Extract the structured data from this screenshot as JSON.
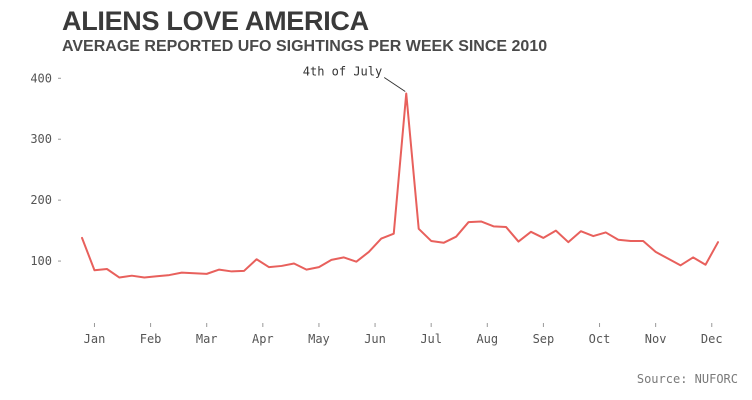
{
  "chart_data": {
    "type": "line",
    "title": "ALIENS LOVE AMERICA",
    "subtitle": "AVERAGE REPORTED UFO SIGHTINGS PER WEEK SINCE 2010",
    "source": "Source: NUFORC",
    "xlabel": "",
    "ylabel": "",
    "ylim": [
      0,
      430
    ],
    "yticks": [
      100,
      200,
      300,
      400
    ],
    "month_ticks": [
      {
        "label": "Jan",
        "week": 2
      },
      {
        "label": "Feb",
        "week": 6.5
      },
      {
        "label": "Mar",
        "week": 11
      },
      {
        "label": "Apr",
        "week": 15.5
      },
      {
        "label": "May",
        "week": 20
      },
      {
        "label": "Jun",
        "week": 24.5
      },
      {
        "label": "Jul",
        "week": 29
      },
      {
        "label": "Aug",
        "week": 33.5
      },
      {
        "label": "Sep",
        "week": 38
      },
      {
        "label": "Oct",
        "week": 42.5
      },
      {
        "label": "Nov",
        "week": 47
      },
      {
        "label": "Dec",
        "week": 51.5
      }
    ],
    "grid": false,
    "line_color": "#e8605c",
    "series": [
      {
        "values": [
          138,
          85,
          87,
          73,
          76,
          73,
          75,
          77,
          81,
          80,
          79,
          86,
          83,
          84,
          103,
          90,
          92,
          96,
          86,
          90,
          102,
          106,
          99,
          115,
          137,
          145,
          375,
          153,
          133,
          130,
          140,
          164,
          165,
          157,
          156,
          132,
          148,
          138,
          150,
          131,
          149,
          141,
          147,
          135,
          133,
          133,
          115,
          104,
          93,
          106,
          94,
          131
        ]
      }
    ],
    "annotations": [
      {
        "text": "4th of July",
        "week": 27,
        "value": 375
      }
    ]
  }
}
